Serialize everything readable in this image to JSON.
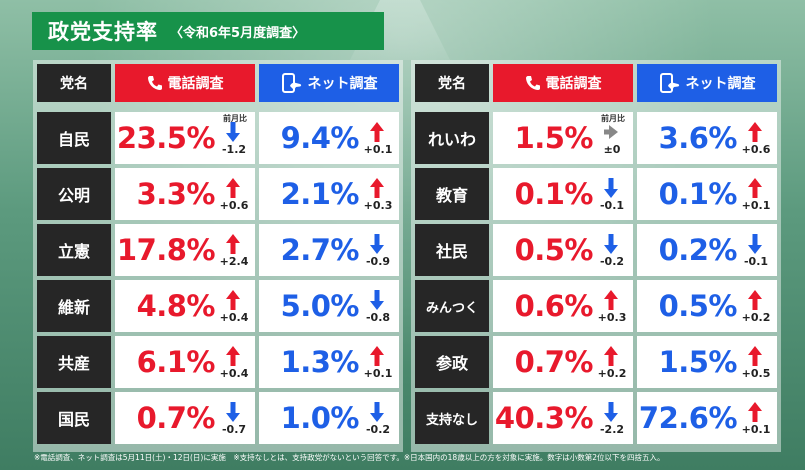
{
  "title": "政党支持率",
  "subtitle": "〈令和6年5月度調査〉",
  "headers": {
    "party": "党名",
    "phone": "電話調査",
    "net": "ネット調査"
  },
  "change_label": "前月比",
  "colors": {
    "phone": "#e8192c",
    "net": "#1e5fe6",
    "party_bg": "#262626",
    "title_bg": "#17924a",
    "up_arrow": "#e8192c",
    "down_arrow": "#1e5fe6",
    "flat_arrow": "#888888"
  },
  "icons": {
    "phone": "phone-icon",
    "net": "smartphone-icon"
  },
  "chart_data": {
    "type": "table",
    "columns": [
      "党名",
      "電話調査",
      "前月比",
      "ネット調査",
      "前月比"
    ],
    "left": [
      {
        "party": "自民",
        "phone": "23.5%",
        "phone_change": "-1.2",
        "phone_dir": "down",
        "net": "9.4%",
        "net_change": "+0.1",
        "net_dir": "up"
      },
      {
        "party": "公明",
        "phone": "3.3%",
        "phone_change": "+0.6",
        "phone_dir": "up",
        "net": "2.1%",
        "net_change": "+0.3",
        "net_dir": "up"
      },
      {
        "party": "立憲",
        "phone": "17.8%",
        "phone_change": "+2.4",
        "phone_dir": "up",
        "net": "2.7%",
        "net_change": "-0.9",
        "net_dir": "down"
      },
      {
        "party": "維新",
        "phone": "4.8%",
        "phone_change": "+0.4",
        "phone_dir": "up",
        "net": "5.0%",
        "net_change": "-0.8",
        "net_dir": "down"
      },
      {
        "party": "共産",
        "phone": "6.1%",
        "phone_change": "+0.4",
        "phone_dir": "up",
        "net": "1.3%",
        "net_change": "+0.1",
        "net_dir": "up"
      },
      {
        "party": "国民",
        "phone": "0.7%",
        "phone_change": "-0.7",
        "phone_dir": "down",
        "net": "1.0%",
        "net_change": "-0.2",
        "net_dir": "down"
      }
    ],
    "right": [
      {
        "party": "れいわ",
        "phone": "1.5%",
        "phone_change": "±0",
        "phone_dir": "flat",
        "net": "3.6%",
        "net_change": "+0.6",
        "net_dir": "up"
      },
      {
        "party": "教育",
        "phone": "0.1%",
        "phone_change": "-0.1",
        "phone_dir": "down",
        "net": "0.1%",
        "net_change": "+0.1",
        "net_dir": "up"
      },
      {
        "party": "社民",
        "phone": "0.5%",
        "phone_change": "-0.2",
        "phone_dir": "down",
        "net": "0.2%",
        "net_change": "-0.1",
        "net_dir": "down"
      },
      {
        "party": "みんつく",
        "phone": "0.6%",
        "phone_change": "+0.3",
        "phone_dir": "up",
        "net": "0.5%",
        "net_change": "+0.2",
        "net_dir": "up"
      },
      {
        "party": "参政",
        "phone": "0.7%",
        "phone_change": "+0.2",
        "phone_dir": "up",
        "net": "1.5%",
        "net_change": "+0.5",
        "net_dir": "up"
      },
      {
        "party": "支持なし",
        "phone": "40.3%",
        "phone_change": "-2.2",
        "phone_dir": "down",
        "net": "72.6%",
        "net_change": "+0.1",
        "net_dir": "up"
      }
    ]
  },
  "footer": "※電話調査、ネット調査は5月11日(土)・12日(日)に実施　※支持なしとは、支持政党がないという回答です。※日本国内の18歳以上の方を対象に実施。数字は小数第2位以下を四捨五入。"
}
